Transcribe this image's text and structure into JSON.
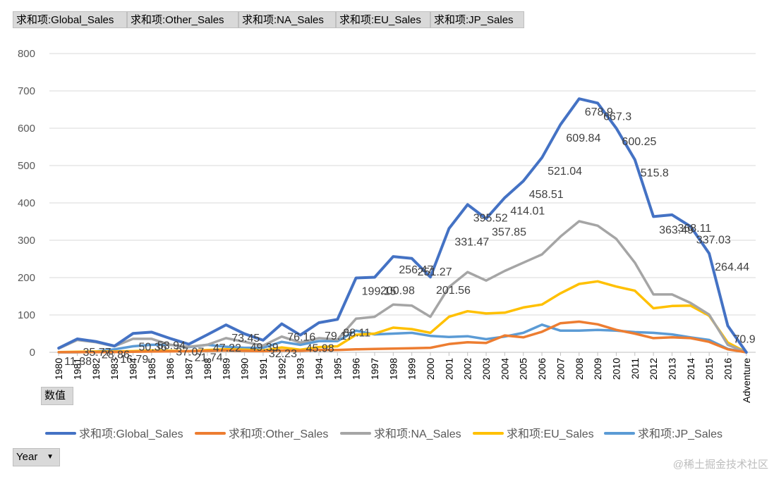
{
  "field_buttons": [
    "求和项:Global_Sales",
    "求和项:Other_Sales",
    "求和项:NA_Sales",
    "求和项:EU_Sales",
    "求和项:JP_Sales"
  ],
  "values_button": "数值",
  "axis_field_button": "Year",
  "watermark": "@稀土掘金技术社区",
  "colors": {
    "Global": "#4472c4",
    "Other": "#ed7d31",
    "NA": "#a5a5a5",
    "EU": "#ffc000",
    "JP": "#5b9bd5",
    "grid": "#d9d9d9",
    "axis_text": "#595959"
  },
  "chart_data": {
    "type": "line",
    "title": "",
    "xlabel": "",
    "ylabel": "",
    "ylim": [
      0,
      800
    ],
    "yticks": [
      0,
      100,
      200,
      300,
      400,
      500,
      600,
      700,
      800
    ],
    "grid": true,
    "legend_position": "bottom",
    "categories": [
      "1980",
      "1981",
      "1982",
      "1983",
      "1984",
      "1985",
      "1986",
      "1987",
      "1988",
      "1989",
      "1990",
      "1991",
      "1992",
      "1993",
      "1994",
      "1995",
      "1996",
      "1997",
      "1998",
      "1999",
      "2000",
      "2001",
      "2002",
      "2003",
      "2004",
      "2005",
      "2006",
      "2007",
      "2008",
      "2009",
      "2010",
      "2011",
      "2012",
      "2013",
      "2014",
      "2015",
      "2016",
      "Adventure"
    ],
    "series": [
      {
        "name": "求和项:Global_Sales",
        "key": "Global",
        "values": [
          11.38,
          35.77,
          28.86,
          16.79,
          50.36,
          53.94,
          37.07,
          21.74,
          47.22,
          73.45,
          49.39,
          32.23,
          76.16,
          45.98,
          79.17,
          88.11,
          199.15,
          200.98,
          256.47,
          251.27,
          201.56,
          331.47,
          395.52,
          357.85,
          414.01,
          458.51,
          521.04,
          609.84,
          678.9,
          667.3,
          600.25,
          515.8,
          363.49,
          368.11,
          337.03,
          264.44,
          70.9,
          0
        ],
        "labels": [
          "11.38",
          "35.77",
          "28.86",
          "16.79",
          "50.36",
          "53.94",
          "37.07",
          "21.74",
          "47.22",
          "73.45",
          "49.39",
          "32.23",
          "76.16",
          "45.98",
          "79.17",
          "88.11",
          "199.15",
          "200.98",
          "256.47",
          "251.27",
          "201.56",
          "331.47",
          "395.52",
          "357.85",
          "414.01",
          "458.51",
          "521.04",
          "609.84",
          "678.9",
          "667.3",
          "600.25",
          "515.8",
          "363.49",
          "368.11",
          "337.03",
          "264.44",
          "70.9",
          ""
        ]
      },
      {
        "name": "求和项:Other_Sales",
        "key": "Other",
        "values": [
          0.1,
          0.3,
          0.5,
          0.8,
          1.5,
          2,
          2.5,
          3,
          4,
          5,
          4,
          3,
          5,
          4,
          6,
          6,
          8,
          9,
          10,
          11,
          12,
          22,
          27,
          25,
          45,
          40,
          55,
          78,
          82,
          75,
          60,
          50,
          38,
          40,
          38,
          28,
          8,
          0
        ]
      },
      {
        "name": "求和项:NA_Sales",
        "key": "NA",
        "values": [
          10,
          33,
          27,
          16,
          36,
          36,
          20,
          15,
          20,
          38,
          28,
          18,
          42,
          26,
          38,
          34,
          90,
          95,
          128,
          125,
          95,
          175,
          215,
          192,
          218,
          240,
          262,
          310,
          351,
          339,
          304,
          240,
          155,
          155,
          132,
          101,
          20,
          0
        ]
      },
      {
        "name": "求和项:EU_Sales",
        "key": "EU",
        "values": [
          0.5,
          1.5,
          2,
          2,
          3,
          5,
          4,
          3,
          6,
          8,
          7,
          5,
          13,
          7,
          14,
          16,
          47,
          50,
          66,
          62,
          52,
          95,
          110,
          104,
          106,
          120,
          128,
          158,
          183,
          190,
          176,
          165,
          118,
          124,
          125,
          98,
          26,
          0
        ]
      },
      {
        "name": "求和项:JP_Sales",
        "key": "JP",
        "values": [
          0,
          0,
          2,
          8,
          16,
          20,
          20,
          14,
          20,
          15,
          12,
          12,
          28,
          20,
          30,
          30,
          58,
          48,
          50,
          52,
          44,
          41,
          43,
          35,
          42,
          52,
          74,
          58,
          58,
          60,
          58,
          54,
          52,
          48,
          40,
          33,
          9,
          0
        ]
      }
    ]
  }
}
